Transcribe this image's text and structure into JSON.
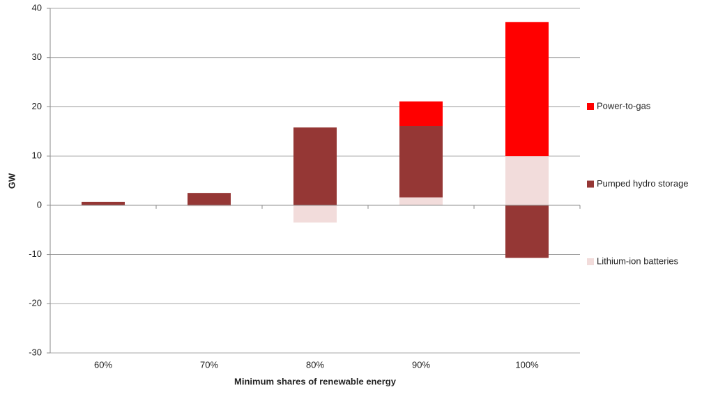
{
  "chart_data": {
    "type": "bar",
    "stacked": true,
    "x_label": "Minimum shares of renewable energy",
    "y_label": "GW",
    "categories": [
      "60%",
      "70%",
      "80%",
      "90%",
      "100%"
    ],
    "series": [
      {
        "name": "Lithium-ion batteries",
        "color": "#f2dcdb",
        "values": [
          0,
          -0.2,
          -3.5,
          1.6,
          10.0
        ]
      },
      {
        "name": "Pumped hydro storage",
        "color": "#953735",
        "values": [
          0.7,
          2.5,
          15.8,
          14.5,
          -10.7
        ]
      },
      {
        "name": "Power-to-gas",
        "color": "#ff0000",
        "values": [
          0,
          0,
          0,
          5.0,
          27.2
        ]
      }
    ],
    "ylim": [
      -30,
      40
    ],
    "yticks": [
      -30,
      -20,
      -10,
      0,
      10,
      20,
      30,
      40
    ],
    "grid": true,
    "legend": "right"
  }
}
